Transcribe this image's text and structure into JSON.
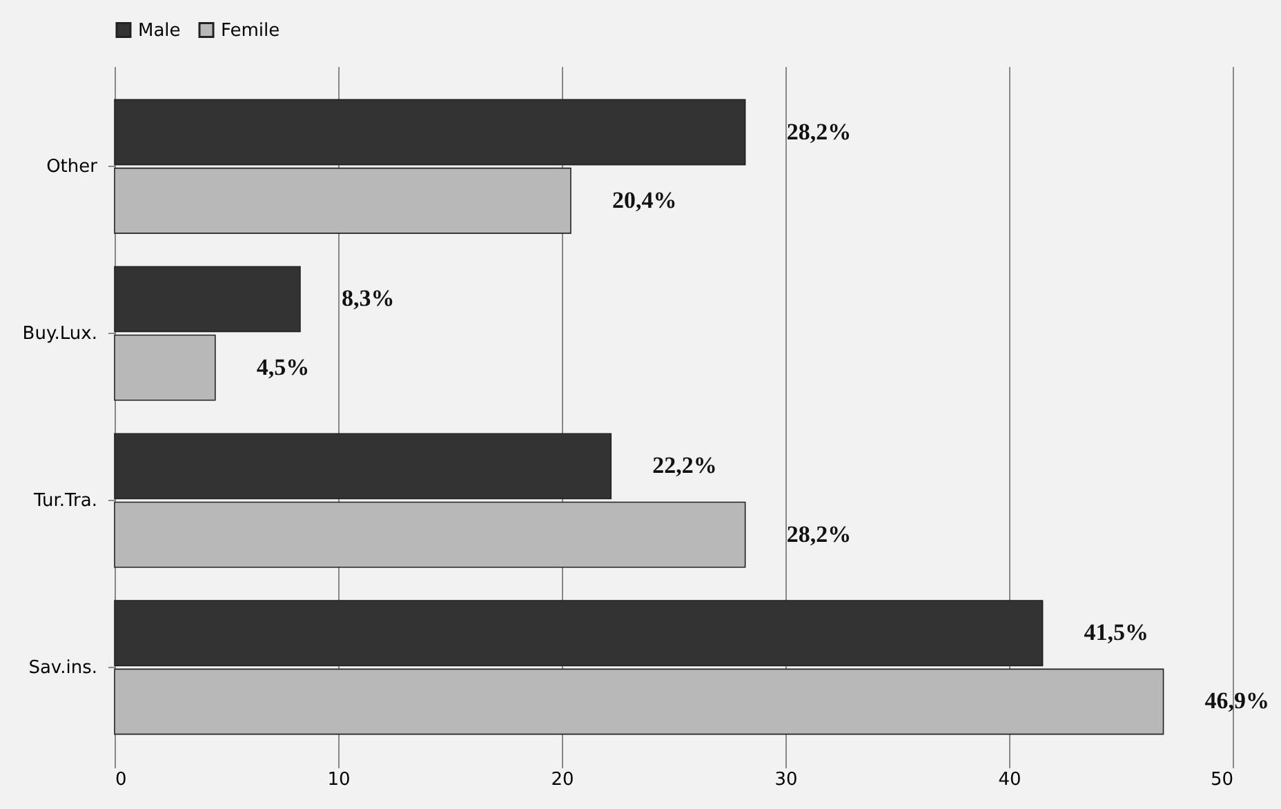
{
  "chart_data": {
    "type": "bar",
    "orientation": "horizontal",
    "categories": [
      "Other",
      "Buy.Lux.",
      "Tur.Tra.",
      "Sav.ins."
    ],
    "series": [
      {
        "name": "Male",
        "color": "#333333",
        "values": [
          28.2,
          8.3,
          22.2,
          41.5
        ],
        "value_labels": [
          "28,2%",
          "8,3%",
          "22,2%",
          "41,5%"
        ]
      },
      {
        "name": "Femile",
        "color": "#b8b8b8",
        "values": [
          20.4,
          4.5,
          28.2,
          46.9
        ],
        "value_labels": [
          "20,4%",
          "4,5%",
          "28,2%",
          "46,9%"
        ]
      }
    ],
    "xlim": [
      0,
      50
    ],
    "xticks": [
      0,
      10,
      20,
      30,
      40,
      50
    ],
    "grid": "x",
    "legend": "top"
  }
}
